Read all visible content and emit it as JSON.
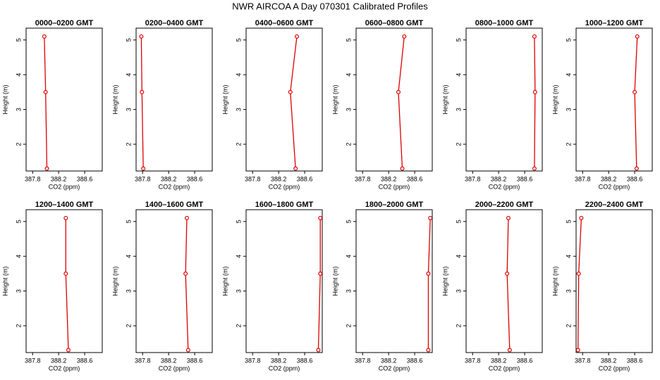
{
  "title": "NWR AIRCOA A  Day 070301  Calibrated Profiles",
  "chart_data": [
    {
      "type": "line",
      "title": "0000–0200 GMT",
      "xlabel": "CO2 (ppm)",
      "ylabel": "Height (m)",
      "color": "#dd0000",
      "x": [
        387.98,
        388.0,
        388.02
      ],
      "values": [
        5.1,
        3.5,
        1.3
      ],
      "xlim": [
        387.7,
        388.87
      ],
      "ylim": [
        1.23,
        5.34
      ],
      "xticks": [
        387.8,
        388.2,
        388.6
      ],
      "yticks": [
        2,
        3,
        4,
        5
      ]
    },
    {
      "type": "line",
      "title": "0200–0400 GMT",
      "xlabel": "CO2 (ppm)",
      "ylabel": "Height (m)",
      "color": "#dd0000",
      "x": [
        387.78,
        387.79,
        387.81
      ],
      "values": [
        5.1,
        3.5,
        1.3
      ],
      "xlim": [
        387.7,
        388.87
      ],
      "ylim": [
        1.23,
        5.34
      ],
      "xticks": [
        387.8,
        388.2,
        388.6
      ],
      "yticks": [
        2,
        3,
        4,
        5
      ]
    },
    {
      "type": "line",
      "title": "0400–0600 GMT",
      "xlabel": "CO2 (ppm)",
      "ylabel": "Height (m)",
      "color": "#dd0000",
      "x": [
        388.48,
        388.38,
        388.46
      ],
      "values": [
        5.1,
        3.5,
        1.3
      ],
      "xlim": [
        387.7,
        388.87
      ],
      "ylim": [
        1.23,
        5.34
      ],
      "xticks": [
        387.8,
        388.2,
        388.6
      ],
      "yticks": [
        2,
        3,
        4,
        5
      ]
    },
    {
      "type": "line",
      "title": "0600–0800 GMT",
      "xlabel": "CO2 (ppm)",
      "ylabel": "Height (m)",
      "color": "#dd0000",
      "x": [
        388.44,
        388.35,
        388.41
      ],
      "values": [
        5.1,
        3.5,
        1.3
      ],
      "xlim": [
        387.7,
        388.87
      ],
      "ylim": [
        1.23,
        5.34
      ],
      "xticks": [
        387.8,
        388.2,
        388.6
      ],
      "yticks": [
        2,
        3,
        4,
        5
      ]
    },
    {
      "type": "line",
      "title": "0800–1000 GMT",
      "xlabel": "CO2 (ppm)",
      "ylabel": "Height (m)",
      "color": "#dd0000",
      "x": [
        388.75,
        388.76,
        388.75
      ],
      "values": [
        5.1,
        3.5,
        1.3
      ],
      "xlim": [
        387.7,
        388.87
      ],
      "ylim": [
        1.23,
        5.34
      ],
      "xticks": [
        387.8,
        388.2,
        388.6
      ],
      "yticks": [
        2,
        3,
        4,
        5
      ]
    },
    {
      "type": "line",
      "title": "1000–1200 GMT",
      "xlabel": "CO2 (ppm)",
      "ylabel": "Height (m)",
      "color": "#dd0000",
      "x": [
        388.64,
        388.6,
        388.63
      ],
      "values": [
        5.1,
        3.5,
        1.3
      ],
      "xlim": [
        387.7,
        388.87
      ],
      "ylim": [
        1.23,
        5.34
      ],
      "xticks": [
        387.8,
        388.2,
        388.6
      ],
      "yticks": [
        2,
        3,
        4,
        5
      ]
    },
    {
      "type": "line",
      "title": "1200–1400 GMT",
      "xlabel": "CO2 (ppm)",
      "ylabel": "Height (m)",
      "color": "#dd0000",
      "x": [
        388.31,
        388.31,
        388.35
      ],
      "values": [
        5.1,
        3.5,
        1.3
      ],
      "xlim": [
        387.7,
        388.87
      ],
      "ylim": [
        1.23,
        5.34
      ],
      "xticks": [
        387.8,
        388.2,
        388.6
      ],
      "yticks": [
        2,
        3,
        4,
        5
      ]
    },
    {
      "type": "line",
      "title": "1400–1600 GMT",
      "xlabel": "CO2 (ppm)",
      "ylabel": "Height (m)",
      "color": "#dd0000",
      "x": [
        388.48,
        388.46,
        388.5
      ],
      "values": [
        5.1,
        3.5,
        1.3
      ],
      "xlim": [
        387.7,
        388.87
      ],
      "ylim": [
        1.23,
        5.34
      ],
      "xticks": [
        387.8,
        388.2,
        388.6
      ],
      "yticks": [
        2,
        3,
        4,
        5
      ]
    },
    {
      "type": "line",
      "title": "1600–1800 GMT",
      "xlabel": "CO2 (ppm)",
      "ylabel": "Height (m)",
      "color": "#dd0000",
      "x": [
        388.84,
        388.84,
        388.81
      ],
      "values": [
        5.1,
        3.5,
        1.3
      ],
      "xlim": [
        387.7,
        388.87
      ],
      "ylim": [
        1.23,
        5.34
      ],
      "xticks": [
        387.8,
        388.2,
        388.6
      ],
      "yticks": [
        2,
        3,
        4,
        5
      ]
    },
    {
      "type": "line",
      "title": "1800–2000 GMT",
      "xlabel": "CO2 (ppm)",
      "ylabel": "Height (m)",
      "color": "#dd0000",
      "x": [
        388.84,
        388.81,
        388.81
      ],
      "values": [
        5.1,
        3.5,
        1.3
      ],
      "xlim": [
        387.7,
        388.87
      ],
      "ylim": [
        1.23,
        5.34
      ],
      "xticks": [
        387.8,
        388.2,
        388.6
      ],
      "yticks": [
        2,
        3,
        4,
        5
      ]
    },
    {
      "type": "line",
      "title": "2000–2200 GMT",
      "xlabel": "CO2 (ppm)",
      "ylabel": "Height (m)",
      "color": "#dd0000",
      "x": [
        388.35,
        388.33,
        388.37
      ],
      "values": [
        5.1,
        3.5,
        1.3
      ],
      "xlim": [
        387.7,
        388.87
      ],
      "ylim": [
        1.23,
        5.34
      ],
      "xticks": [
        387.8,
        388.2,
        388.6
      ],
      "yticks": [
        2,
        3,
        4,
        5
      ]
    },
    {
      "type": "line",
      "title": "2200–2400 GMT",
      "xlabel": "CO2 (ppm)",
      "ylabel": "Height (m)",
      "color": "#dd0000",
      "x": [
        387.78,
        387.74,
        387.73
      ],
      "values": [
        5.1,
        3.5,
        1.3
      ],
      "xlim": [
        387.7,
        388.87
      ],
      "ylim": [
        1.23,
        5.34
      ],
      "xticks": [
        387.8,
        388.2,
        388.6
      ],
      "yticks": [
        2,
        3,
        4,
        5
      ]
    }
  ]
}
